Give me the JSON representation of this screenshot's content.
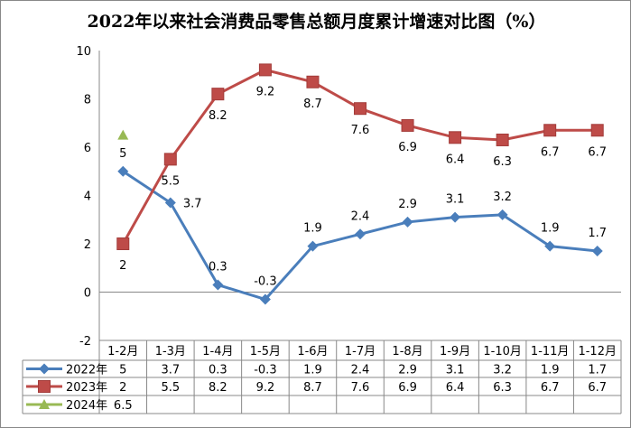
{
  "chart_data": {
    "type": "line",
    "title": "2022年以来社会消费品零售总额月度累计增速对比图（%）",
    "categories": [
      "1-2月",
      "1-3月",
      "1-4月",
      "1-5月",
      "1-6月",
      "1-7月",
      "1-8月",
      "1-9月",
      "1-10月",
      "1-11月",
      "1-12月"
    ],
    "ylim": [
      -2,
      10
    ],
    "yticks": [
      -2,
      0,
      2,
      4,
      6,
      8,
      10
    ],
    "grid": false,
    "legend": "data table below chart",
    "series": [
      {
        "name": "2022年",
        "color": "#4a7ebb",
        "marker": "diamond",
        "values": [
          5,
          3.7,
          0.3,
          -0.3,
          1.9,
          2.4,
          2.9,
          3.1,
          3.2,
          1.9,
          1.7
        ],
        "labels": "above"
      },
      {
        "name": "2023年",
        "color": "#be4b48",
        "marker": "square",
        "values": [
          2,
          5.5,
          8.2,
          9.2,
          8.7,
          7.6,
          6.9,
          6.4,
          6.3,
          6.7,
          6.7
        ],
        "labels": "below"
      },
      {
        "name": "2024年",
        "color": "#98b954",
        "marker": "triangle",
        "values": [
          6.5,
          null,
          null,
          null,
          null,
          null,
          null,
          null,
          null,
          null,
          null
        ],
        "labels": "none"
      }
    ]
  }
}
